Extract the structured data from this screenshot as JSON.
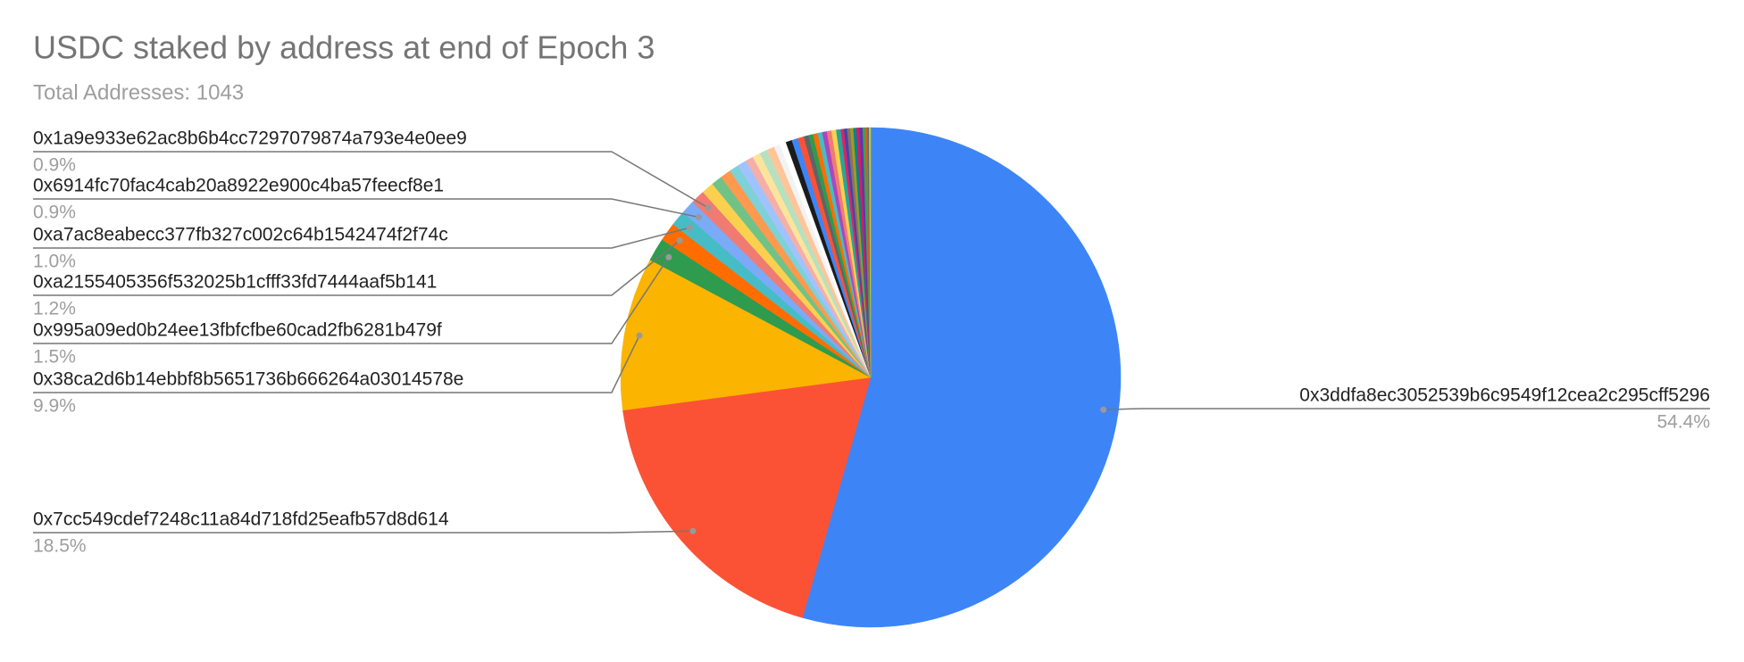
{
  "chart_data": {
    "type": "pie",
    "title": "USDC staked by address at end of Epoch 3",
    "subtitle": "Total Addresses: 1043",
    "categories": [
      "0x3ddfa8ec3052539b6c9549f12cea2c295cff5296",
      "0x7cc549cdef7248c11a84d718fd25eafb57d8d614",
      "0x38ca2d6b14ebbf8b5651736b666264a03014578e",
      "0x995a09ed0b24ee13fbfcfbe60cad2fb6281b479f",
      "0xa2155405356f532025b1cfff33fd7444aaf5b141",
      "0xa7ac8eabecc377fb327c002c64b1542474f2f74c",
      "0x6914fc70fac4cab20a8922e900c4ba57feecf8e1",
      "0x1a9e933e62ac8b6b4cc7297079874a793e4e0ee9",
      null,
      null,
      null,
      null,
      null,
      null,
      null,
      null,
      null,
      null,
      null,
      null,
      null,
      null,
      null,
      null,
      null,
      null,
      null,
      null,
      null,
      null,
      null,
      null,
      null,
      null,
      null,
      null,
      null,
      null,
      null,
      null,
      null
    ],
    "values": [
      54.4,
      18.5,
      9.9,
      1.5,
      1.2,
      1.0,
      0.9,
      0.9,
      0.8,
      0.7,
      0.7,
      0.6,
      0.6,
      0.5,
      0.5,
      0.5,
      0.5,
      0.4,
      0.4,
      0.4,
      0.4,
      0.4,
      0.3,
      0.3,
      0.3,
      0.3,
      0.3,
      0.3,
      0.3,
      0.3,
      0.2,
      0.2,
      0.2,
      0.2,
      0.2,
      0.2,
      0.2,
      0.2,
      0.1,
      0.1,
      0.1
    ],
    "value_labels": [
      "54.4%",
      "18.5%",
      "9.9%",
      "1.5%",
      "1.2%",
      "1.0%",
      "0.9%",
      "0.9%",
      null,
      null,
      null,
      null,
      null,
      null,
      null,
      null,
      null,
      null,
      null,
      null,
      null,
      null,
      null,
      null,
      null,
      null,
      null,
      null,
      null,
      null,
      null,
      null,
      null,
      null,
      null,
      null,
      null,
      null,
      null,
      null,
      null
    ],
    "colors": [
      "#3d85f7",
      "#fb5235",
      "#fbb400",
      "#2e9b4f",
      "#ff6d00",
      "#46bdc6",
      "#7baaf7",
      "#f07b72",
      "#fcd04f",
      "#71c287",
      "#ff994d",
      "#7ed1d7",
      "#a0c3ff",
      "#f6aea9",
      "#fde49b",
      "#b6e1c1",
      "#ffc599",
      "#f3f3f3",
      "#ffffff",
      "#1b1b1b",
      "#3d85f7",
      "#fb5235",
      "#5f6368",
      "#2e9b4f",
      "#ff6d00",
      "#46bdc6",
      "#ab47bc",
      "#f07b72",
      "#fcd04f",
      "#26a69a",
      "#e91e63",
      "#3949ab",
      "#8d6e63",
      "#9e9d24",
      "#00838f",
      "#d81b60",
      "#5e35b1",
      "#43a047",
      "#f4511e",
      "#546e7a",
      "#c0ca33"
    ]
  }
}
